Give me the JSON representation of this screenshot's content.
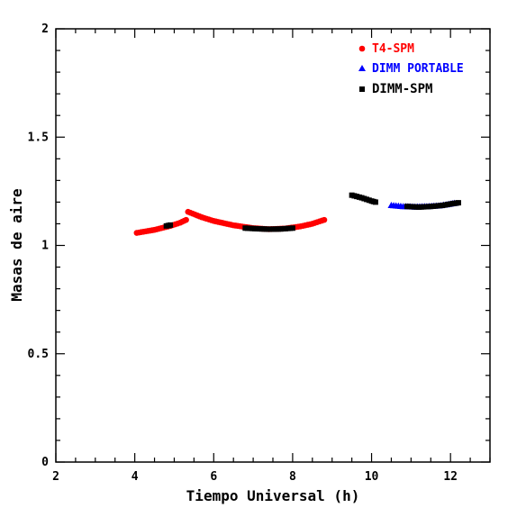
{
  "chart_data": {
    "type": "scatter",
    "xlabel": "Tiempo Universal (h)",
    "ylabel": "Masas de aire",
    "xlim": [
      2,
      13
    ],
    "ylim": [
      0,
      2
    ],
    "x_ticks": [
      2,
      4,
      6,
      8,
      10,
      12
    ],
    "y_ticks": [
      0,
      0.5,
      1,
      1.5,
      2
    ],
    "x_tick_labels": [
      "2",
      "4",
      "6",
      "8",
      "10",
      "12"
    ],
    "y_tick_labels": [
      "0",
      "0.5",
      "1",
      "1.5",
      "2"
    ],
    "grid": false,
    "legend_position": "top-right",
    "series": [
      {
        "name": "T4-SPM",
        "color": "#ff0000",
        "marker": "circle",
        "points": [
          [
            4.05,
            1.058
          ],
          [
            4.5,
            1.072
          ],
          [
            4.9,
            1.09
          ],
          [
            5.15,
            1.105
          ],
          [
            5.3,
            1.118
          ],
          [
            5.35,
            1.155
          ],
          [
            5.7,
            1.13
          ],
          [
            6.0,
            1.113
          ],
          [
            6.5,
            1.093
          ],
          [
            7.0,
            1.08
          ],
          [
            7.4,
            1.075
          ],
          [
            7.8,
            1.078
          ],
          [
            8.2,
            1.088
          ],
          [
            8.5,
            1.1
          ],
          [
            8.8,
            1.118
          ]
        ]
      },
      {
        "name": "DIMM PORTABLE",
        "color": "#0000ff",
        "marker": "triangle",
        "points": [
          [
            10.5,
            1.185
          ],
          [
            10.8,
            1.18
          ],
          [
            11.1,
            1.178
          ],
          [
            11.4,
            1.18
          ],
          [
            11.7,
            1.183
          ],
          [
            11.95,
            1.19
          ],
          [
            12.1,
            1.195
          ]
        ]
      },
      {
        "name": "DIMM-SPM",
        "color": "#000000",
        "marker": "square",
        "points": [
          [
            4.8,
            1.09
          ],
          [
            4.9,
            1.094
          ],
          [
            6.8,
            1.08
          ],
          [
            7.1,
            1.077
          ],
          [
            7.4,
            1.075
          ],
          [
            7.7,
            1.076
          ],
          [
            8.0,
            1.08
          ],
          [
            9.5,
            1.232
          ],
          [
            9.75,
            1.22
          ],
          [
            10.0,
            1.205
          ],
          [
            10.1,
            1.2
          ],
          [
            10.9,
            1.18
          ],
          [
            11.2,
            1.177
          ],
          [
            11.5,
            1.18
          ],
          [
            11.8,
            1.185
          ],
          [
            12.05,
            1.193
          ],
          [
            12.2,
            1.197
          ]
        ]
      }
    ]
  }
}
